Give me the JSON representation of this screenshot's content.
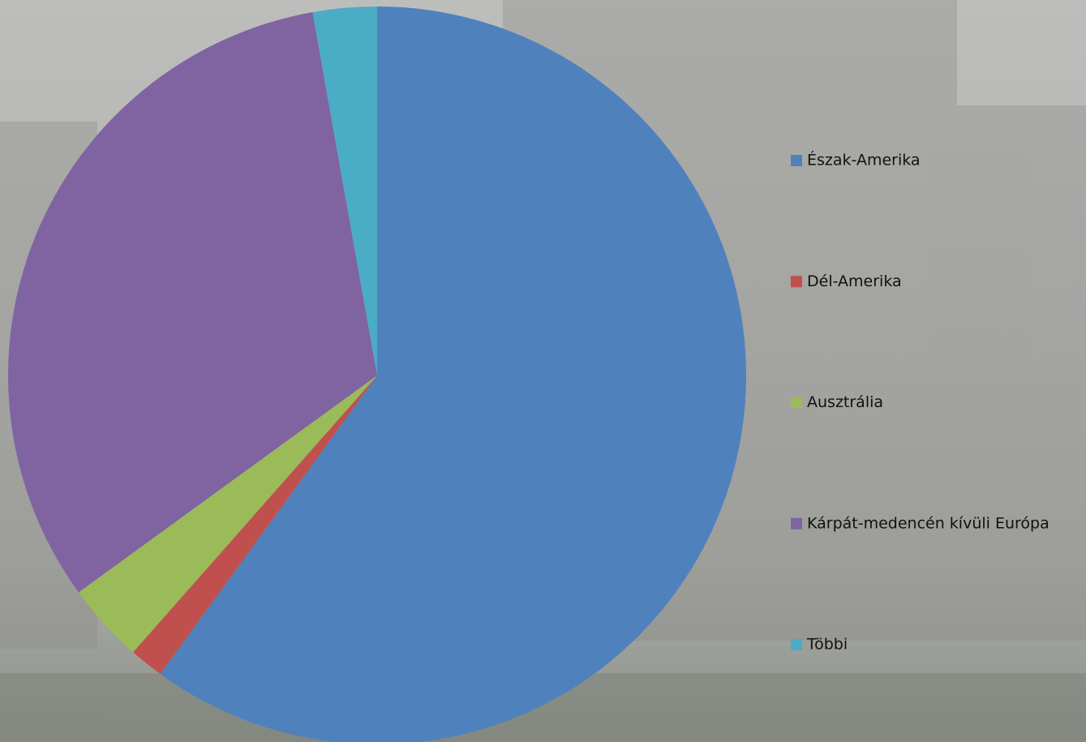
{
  "chart_data": {
    "type": "pie",
    "categories": [
      "Észak-Amerika",
      "Dél-Amerika",
      "Ausztrália",
      "Kárpát-medencén kívüli Európa",
      "Többi"
    ],
    "values": [
      60,
      1.5,
      3.5,
      32.2,
      2.8
    ],
    "colors": [
      "#4f81bd",
      "#c0504d",
      "#9bbb59",
      "#8064a2",
      "#4bacc6"
    ],
    "legend": "right"
  }
}
